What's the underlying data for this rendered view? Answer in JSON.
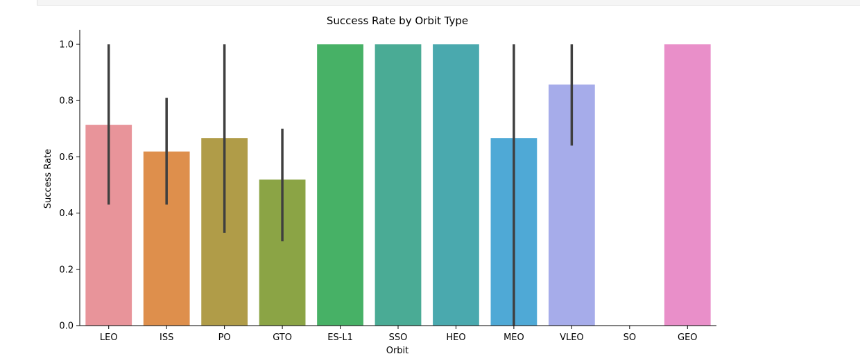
{
  "chart_data": {
    "type": "bar",
    "title": "Success Rate by Orbit Type",
    "xlabel": "Orbit",
    "ylabel": "Success Rate",
    "ylim": [
      0,
      1.05
    ],
    "yticks": [
      0.0,
      0.2,
      0.4,
      0.6,
      0.8,
      1.0
    ],
    "ytick_labels": [
      "0.0",
      "0.2",
      "0.4",
      "0.6",
      "0.8",
      "1.0"
    ],
    "grid": false,
    "categories": [
      "LEO",
      "ISS",
      "PO",
      "GTO",
      "ES-L1",
      "SSO",
      "HEO",
      "MEO",
      "VLEO",
      "SO",
      "GEO"
    ],
    "values": [
      0.714,
      0.619,
      0.667,
      0.519,
      1.0,
      1.0,
      1.0,
      0.667,
      0.857,
      0.0,
      1.0
    ],
    "error_low": [
      0.43,
      0.43,
      0.33,
      0.3,
      null,
      null,
      null,
      0.0,
      0.64,
      null,
      null
    ],
    "error_high": [
      1.0,
      0.81,
      1.0,
      0.7,
      null,
      null,
      null,
      1.0,
      1.0,
      null,
      null
    ],
    "colors": [
      "#e8949a",
      "#de8f4c",
      "#b09c48",
      "#8ba445",
      "#47b166",
      "#4aab95",
      "#4aa9ae",
      "#4fa9d6",
      "#a6acea",
      "#e98fc2",
      "#e98fc9"
    ]
  }
}
